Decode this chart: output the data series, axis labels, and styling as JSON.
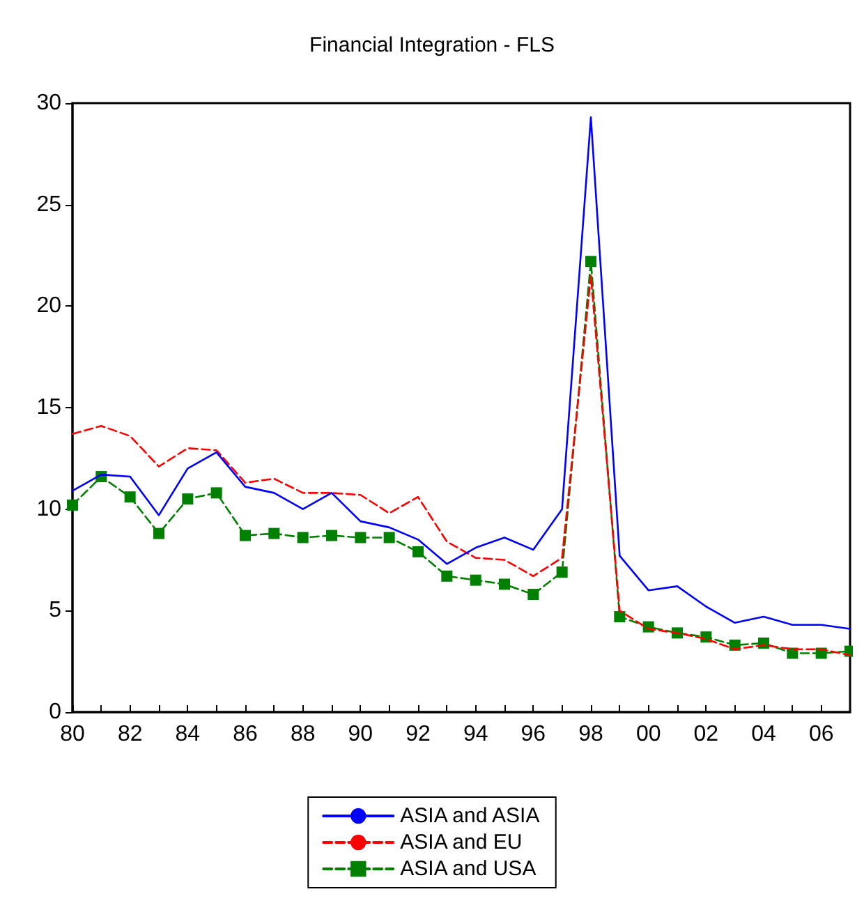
{
  "chart_data": {
    "type": "line",
    "title": "Financial Integration - FLS",
    "x": [
      1980,
      1981,
      1982,
      1983,
      1984,
      1985,
      1986,
      1987,
      1988,
      1989,
      1990,
      1991,
      1992,
      1993,
      1994,
      1995,
      1996,
      1997,
      1998,
      1999,
      2000,
      2001,
      2002,
      2003,
      2004,
      2005,
      2006,
      2007
    ],
    "series": [
      {
        "name": "ASIA and ASIA",
        "color": "#0000ff",
        "line_style": "solid",
        "marker": "none",
        "values": [
          10.9,
          11.7,
          11.6,
          9.7,
          12.0,
          12.8,
          11.1,
          10.8,
          10.0,
          10.8,
          9.4,
          9.1,
          8.5,
          7.3,
          8.1,
          8.6,
          8.0,
          10.0,
          29.3,
          7.7,
          6.0,
          6.2,
          5.2,
          4.4,
          4.7,
          4.3,
          4.3,
          4.1
        ]
      },
      {
        "name": "ASIA and EU",
        "color": "#ff0000",
        "line_style": "dashed",
        "marker": "none",
        "values": [
          13.7,
          14.1,
          13.6,
          12.1,
          13.0,
          12.9,
          11.3,
          11.5,
          10.8,
          10.8,
          10.7,
          9.8,
          10.6,
          8.4,
          7.6,
          7.5,
          6.7,
          7.6,
          21.5,
          5.0,
          4.1,
          3.9,
          3.6,
          3.1,
          3.3,
          3.1,
          3.1,
          2.8
        ]
      },
      {
        "name": "ASIA and USA",
        "color": "#008000",
        "line_style": "dashed",
        "marker": "square",
        "values": [
          10.2,
          11.6,
          10.6,
          8.8,
          10.5,
          10.8,
          8.7,
          8.8,
          8.6,
          8.7,
          8.6,
          8.6,
          7.9,
          6.7,
          6.5,
          6.3,
          5.8,
          6.9,
          22.2,
          4.7,
          4.2,
          3.9,
          3.7,
          3.3,
          3.4,
          2.9,
          2.9,
          3.0
        ]
      }
    ],
    "xlim": [
      1980,
      2007
    ],
    "xticks": [
      {
        "value": 1980,
        "label": "80"
      },
      {
        "value": 1981,
        "label": null
      },
      {
        "value": 1982,
        "label": "82"
      },
      {
        "value": 1983,
        "label": null
      },
      {
        "value": 1984,
        "label": "84"
      },
      {
        "value": 1985,
        "label": null
      },
      {
        "value": 1986,
        "label": "86"
      },
      {
        "value": 1987,
        "label": null
      },
      {
        "value": 1988,
        "label": "88"
      },
      {
        "value": 1989,
        "label": null
      },
      {
        "value": 1990,
        "label": "90"
      },
      {
        "value": 1991,
        "label": null
      },
      {
        "value": 1992,
        "label": "92"
      },
      {
        "value": 1993,
        "label": null
      },
      {
        "value": 1994,
        "label": "94"
      },
      {
        "value": 1995,
        "label": null
      },
      {
        "value": 1996,
        "label": "96"
      },
      {
        "value": 1997,
        "label": null
      },
      {
        "value": 1998,
        "label": "98"
      },
      {
        "value": 1999,
        "label": null
      },
      {
        "value": 2000,
        "label": "00"
      },
      {
        "value": 2001,
        "label": null
      },
      {
        "value": 2002,
        "label": "02"
      },
      {
        "value": 2003,
        "label": null
      },
      {
        "value": 2004,
        "label": "04"
      },
      {
        "value": 2005,
        "label": null
      },
      {
        "value": 2006,
        "label": "06"
      }
    ],
    "ylim": [
      0,
      30
    ],
    "yticks": [
      0,
      5,
      10,
      15,
      20,
      25,
      30
    ],
    "grid": false,
    "legend": "bottom"
  }
}
